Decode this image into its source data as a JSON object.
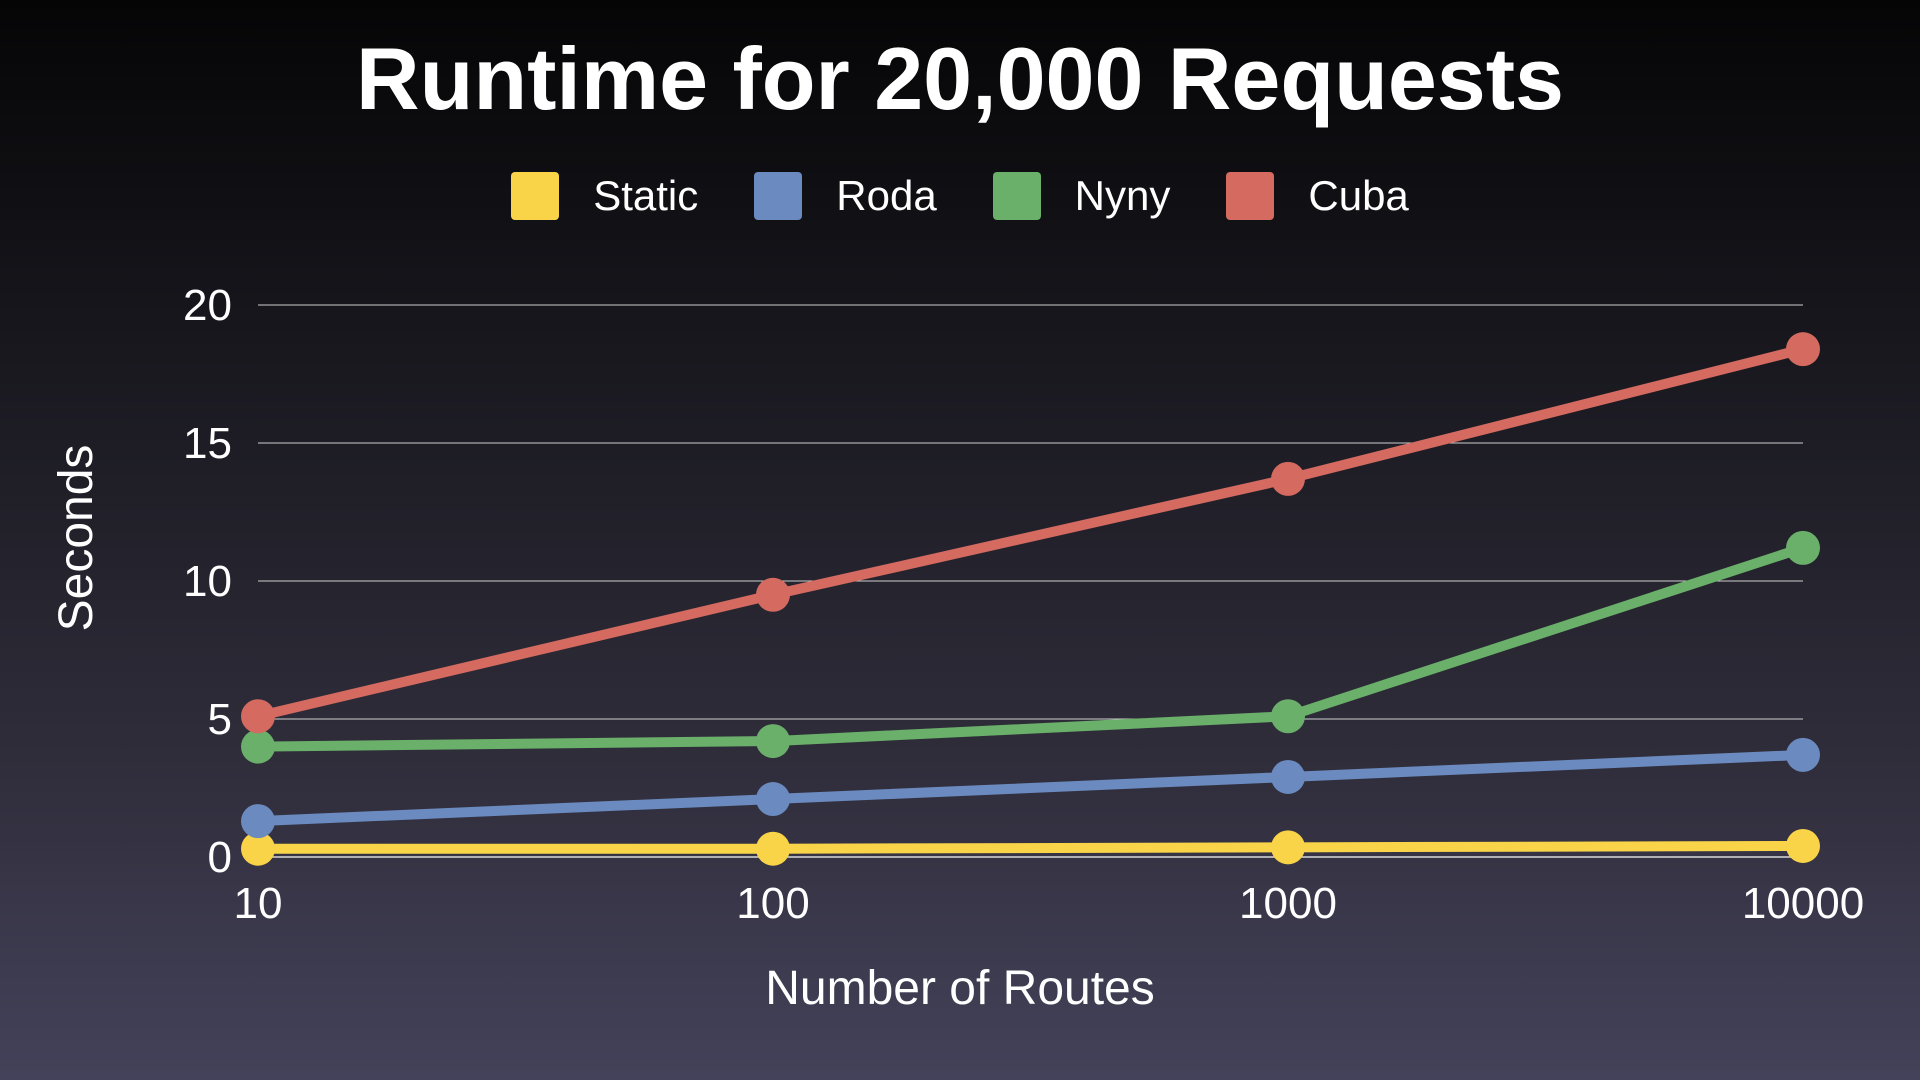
{
  "chart_data": {
    "type": "line",
    "title": "Runtime for 20,000 Requests",
    "xlabel": "Number of Routes",
    "ylabel": "Seconds",
    "x_scale": "log",
    "x": [
      10,
      100,
      1000,
      10000
    ],
    "x_tick_labels": [
      "10",
      "100",
      "1000",
      "10000"
    ],
    "ylim": [
      0,
      20
    ],
    "y_ticks": [
      0,
      5,
      10,
      15,
      20
    ],
    "y_tick_labels": [
      "0",
      "5",
      "10",
      "15",
      "20"
    ],
    "grid": true,
    "legend_position": "top-center",
    "series": [
      {
        "name": "Static",
        "color": "#f9d448",
        "values": [
          0.3,
          0.3,
          0.35,
          0.4
        ]
      },
      {
        "name": "Roda",
        "color": "#6b8abf",
        "values": [
          1.3,
          2.1,
          2.9,
          3.7
        ]
      },
      {
        "name": "Nyny",
        "color": "#6aaf6a",
        "values": [
          4.0,
          4.2,
          5.1,
          11.2
        ]
      },
      {
        "name": "Cuba",
        "color": "#d46a60",
        "values": [
          5.1,
          9.5,
          13.7,
          18.4
        ]
      }
    ]
  }
}
